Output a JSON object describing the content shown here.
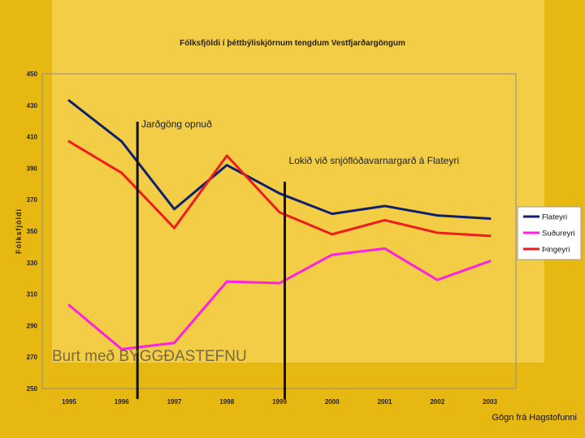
{
  "chart_data": {
    "type": "line",
    "title": "Fólksfjöldi í þéttbýliskjörnum tengdum Vestfjarðargöngum",
    "ylabel": "Fólksfjöldi",
    "xlabel": "",
    "categories": [
      "1995",
      "1996",
      "1997",
      "1998",
      "1999",
      "2000",
      "2001",
      "2002",
      "2003"
    ],
    "y_ticks": [
      "250",
      "270",
      "290",
      "310",
      "330",
      "350",
      "370",
      "390",
      "410",
      "430",
      "450"
    ],
    "ylim": [
      250,
      450
    ],
    "grid": false,
    "legend": "right",
    "series": [
      {
        "name": "Flateyri",
        "color": "#10206e",
        "values": [
          433,
          407,
          364,
          392,
          374,
          361,
          366,
          360,
          358
        ]
      },
      {
        "name": "Suðureyri",
        "color": "#ff20e0",
        "values": [
          303,
          275,
          279,
          318,
          317,
          335,
          339,
          319,
          331
        ]
      },
      {
        "name": "Þingeyri",
        "color": "#ee1c1c",
        "values": [
          407,
          387,
          352,
          398,
          362,
          348,
          357,
          349,
          347
        ]
      }
    ],
    "events": [
      {
        "label": "Jarðgöng opnuð",
        "x": 1996.3
      },
      {
        "label": "Lokið við snjóflóðavarnargarð á Flateyri",
        "x": 1999.1
      }
    ],
    "watermark": "Burt með BYGGÐASTEFNU",
    "source": "Gögn frá Hagstofunni"
  }
}
